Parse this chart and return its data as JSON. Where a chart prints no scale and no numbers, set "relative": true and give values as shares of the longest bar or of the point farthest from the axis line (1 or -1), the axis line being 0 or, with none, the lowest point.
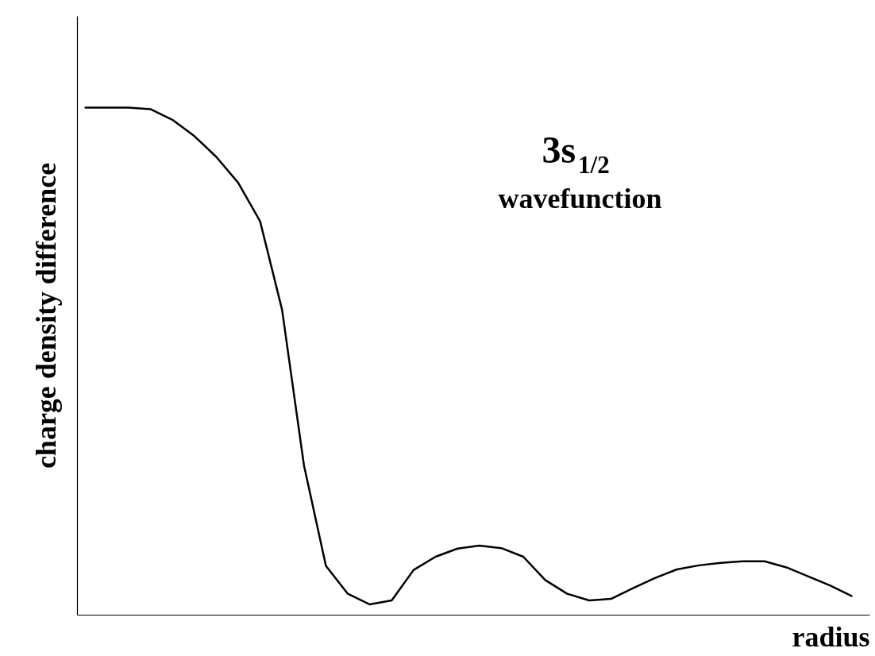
{
  "chart_data": {
    "type": "line",
    "relative": true,
    "xlabel": "radius",
    "ylabel": "charge density difference",
    "annotations": [
      "3s$_{1/2}$",
      "wavefunction"
    ],
    "categories": [
      null,
      null,
      null,
      null,
      null,
      null,
      null,
      null,
      null,
      null,
      null,
      null,
      null,
      null,
      null,
      null,
      null,
      null,
      null,
      null,
      null,
      null,
      null,
      null,
      null,
      null,
      null,
      null,
      null,
      null,
      null,
      null,
      null,
      null,
      null,
      null
    ],
    "series": [
      {
        "color": "#000000",
        "values": [
          1.0,
          1.0,
          1.0,
          0.997,
          0.976,
          0.944,
          0.903,
          0.852,
          0.776,
          0.602,
          0.295,
          0.097,
          0.042,
          0.021,
          0.029,
          0.089,
          0.115,
          0.131,
          0.137,
          0.132,
          0.115,
          0.069,
          0.042,
          0.029,
          0.032,
          0.053,
          0.073,
          0.09,
          0.098,
          0.103,
          0.106,
          0.106,
          0.094,
          0.076,
          0.058,
          0.037
        ]
      }
    ],
    "marker": "none",
    "line_style": "solid"
  }
}
